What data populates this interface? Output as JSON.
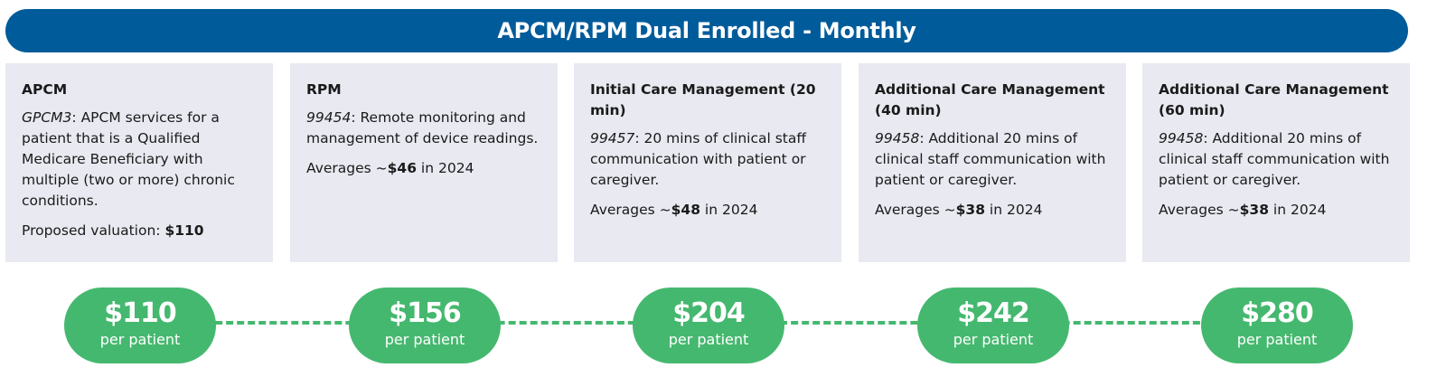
{
  "title": "APCM/RPM Dual Enrolled - Monthly",
  "colors": {
    "banner": "#005b9a",
    "card": "#e8e9f1",
    "pill": "#45b86f"
  },
  "cards": [
    {
      "title": "APCM",
      "code": "GPCM3",
      "desc": ": APCM services for a patient that is a Qualified Medicare Beneficiary with multiple (two or more) chronic conditions.",
      "value_prefix": "Proposed valuation: ",
      "value": "$110",
      "value_suffix": ""
    },
    {
      "title": "RPM",
      "code": "99454",
      "desc": ": Remote monitoring and management of device readings.",
      "value_prefix": "Averages ~",
      "value": "$46",
      "value_suffix": " in 2024"
    },
    {
      "title": "Initial Care Management (20 min)",
      "code": "99457",
      "desc": ": 20 mins of clinical staff communication with patient or caregiver.",
      "value_prefix": "Averages ~",
      "value": "$48",
      "value_suffix": " in 2024"
    },
    {
      "title": "Additional Care Management (40 min)",
      "code": "99458",
      "desc": ": Additional 20 mins of clinical staff communication with patient or caregiver.",
      "value_prefix": "Averages ~",
      "value": "$38",
      "value_suffix": " in 2024"
    },
    {
      "title": "Additional Care Management (60 min)",
      "code": "99458",
      "desc": ": Additional 20 mins of clinical staff communication with patient or caregiver.",
      "value_prefix": "Averages ~",
      "value": "$38",
      "value_suffix": " in 2024"
    }
  ],
  "totals": [
    {
      "value": "$110",
      "label": "per patient"
    },
    {
      "value": "$156",
      "label": "per patient"
    },
    {
      "value": "$204",
      "label": "per patient"
    },
    {
      "value": "$242",
      "label": "per patient"
    },
    {
      "value": "$280",
      "label": "per patient"
    }
  ]
}
